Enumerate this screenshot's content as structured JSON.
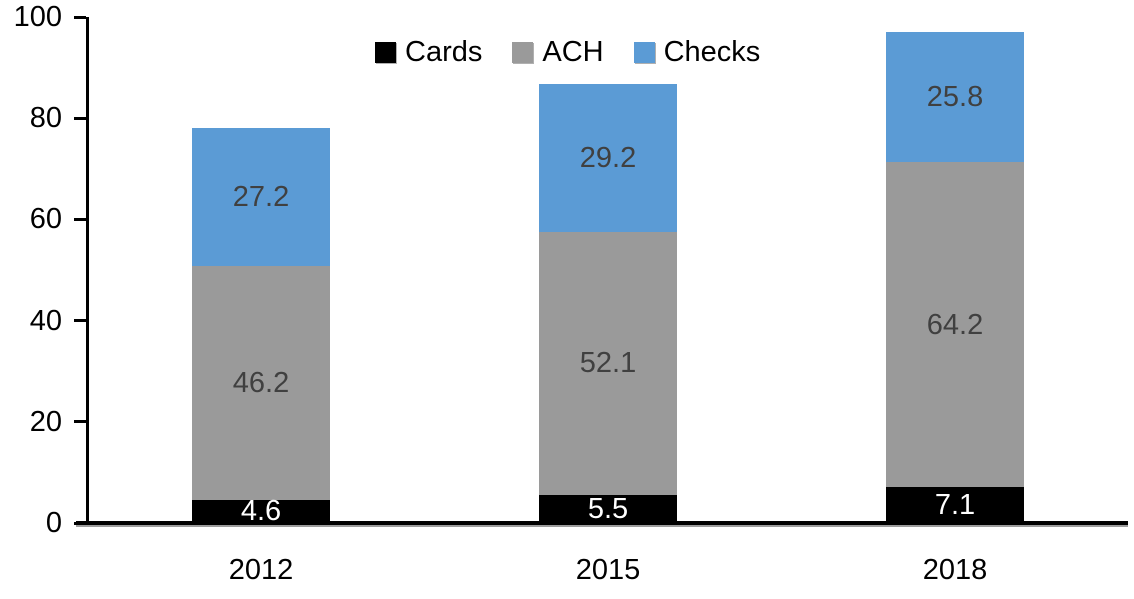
{
  "chart_data": {
    "type": "bar",
    "stacked": true,
    "title": "",
    "xlabel": "",
    "ylabel": "",
    "categories": [
      "2012",
      "2015",
      "2018"
    ],
    "series": [
      {
        "name": "Cards",
        "color": "#000000",
        "label_color": "#ffffff",
        "values": [
          4.6,
          5.5,
          7.1
        ]
      },
      {
        "name": "ACH",
        "color": "#9a9a9a",
        "label_color": "#404040",
        "values": [
          46.2,
          52.1,
          64.2
        ]
      },
      {
        "name": "Checks",
        "color": "#5b9bd5",
        "label_color": "#404040",
        "values": [
          27.2,
          29.2,
          25.8
        ]
      }
    ],
    "totals": [
      78.0,
      86.8,
      97.1
    ],
    "yticks": [
      0,
      20,
      40,
      60,
      80,
      100
    ],
    "ylim": [
      0,
      100
    ],
    "legend_position": "top",
    "legend_labels": [
      "Cards",
      "ACH",
      "Checks"
    ],
    "grid": false,
    "axis_color": "#000000",
    "background_color": "#ffffff"
  }
}
